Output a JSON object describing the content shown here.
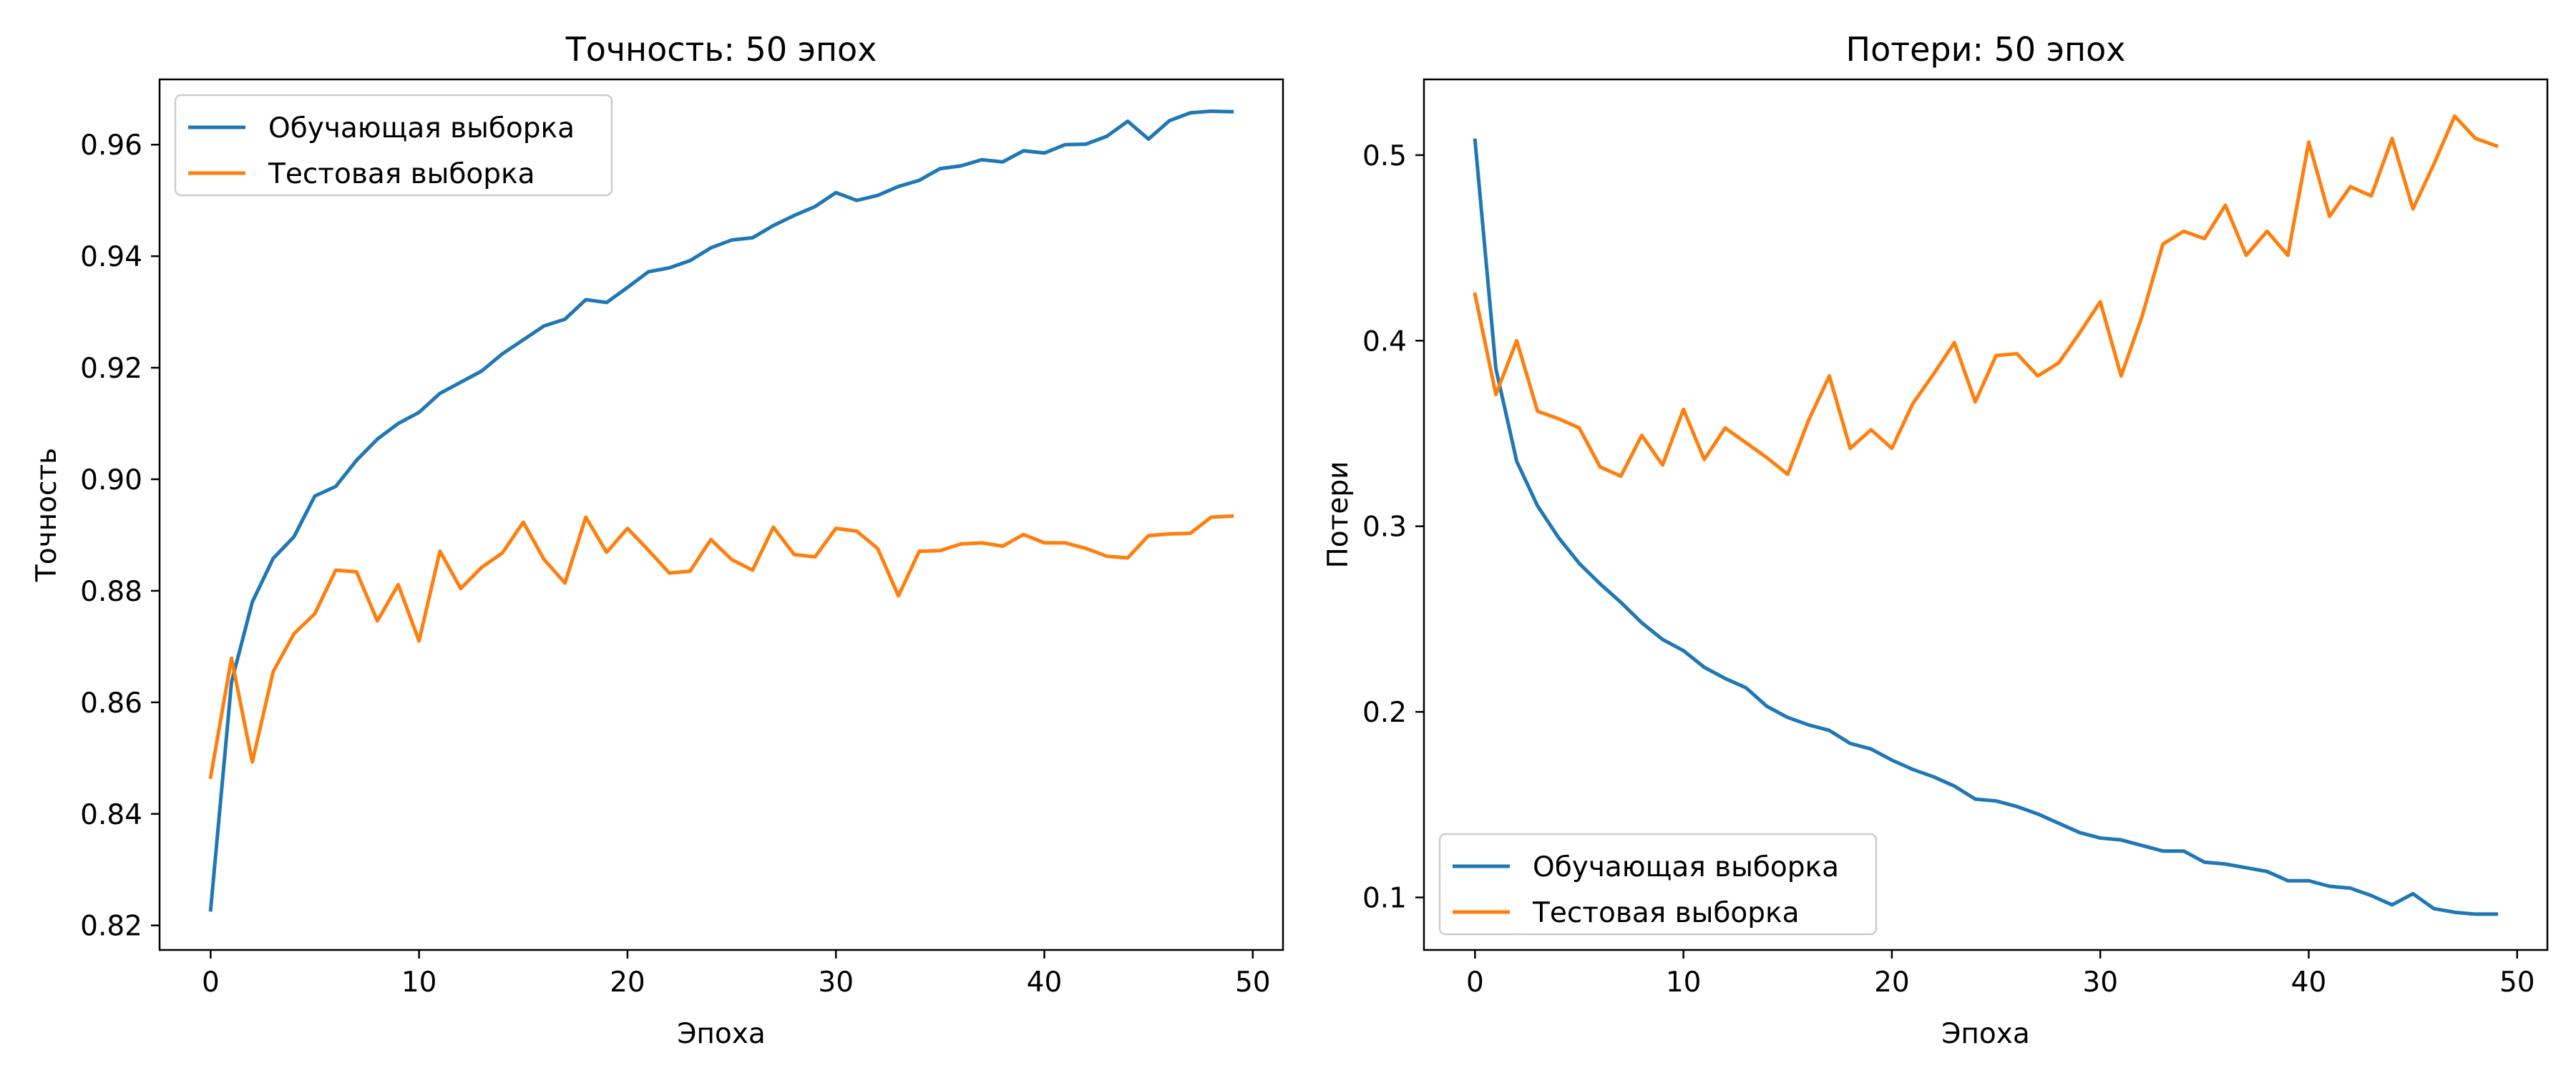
{
  "chart_data": [
    {
      "type": "line",
      "title": "Точность: 50 эпох",
      "xlabel": "Эпоха",
      "ylabel": "Точность",
      "xlim": [
        -2.45,
        51.45
      ],
      "ylim": [
        0.8156,
        0.9717
      ],
      "xticks": [
        0,
        10,
        20,
        30,
        40,
        50
      ],
      "xtick_labels": [
        "0",
        "10",
        "20",
        "30",
        "40",
        "50"
      ],
      "yticks": [
        0.82,
        0.84,
        0.86,
        0.88,
        0.9,
        0.92,
        0.94,
        0.96
      ],
      "ytick_labels": [
        "0.82",
        "0.84",
        "0.86",
        "0.88",
        "0.90",
        "0.92",
        "0.94",
        "0.96"
      ],
      "grid": false,
      "legend_position": "upper-left",
      "x": [
        0,
        1,
        2,
        3,
        4,
        5,
        6,
        7,
        8,
        9,
        10,
        11,
        12,
        13,
        14,
        15,
        16,
        17,
        18,
        19,
        20,
        21,
        22,
        23,
        24,
        25,
        26,
        27,
        28,
        29,
        30,
        31,
        32,
        33,
        34,
        35,
        36,
        37,
        38,
        39,
        40,
        41,
        42,
        43,
        44,
        45,
        46,
        47,
        48,
        49
      ],
      "series": [
        {
          "name": "Обучающая выборка",
          "color": "#1f77b4",
          "values": [
            0.8228,
            0.8636,
            0.878,
            0.8858,
            0.8897,
            0.897,
            0.8987,
            0.9034,
            0.9072,
            0.91,
            0.912,
            0.9154,
            0.9174,
            0.9194,
            0.9225,
            0.925,
            0.9275,
            0.9287,
            0.9322,
            0.9317,
            0.9344,
            0.9372,
            0.9379,
            0.9392,
            0.9415,
            0.9429,
            0.9433,
            0.9455,
            0.9473,
            0.9489,
            0.9514,
            0.95,
            0.9509,
            0.9525,
            0.9536,
            0.9557,
            0.9562,
            0.9573,
            0.9569,
            0.9589,
            0.9585,
            0.96,
            0.9601,
            0.9615,
            0.9642,
            0.961,
            0.9643,
            0.9657,
            0.966,
            0.9659
          ]
        },
        {
          "name": "Тестовая выборка",
          "color": "#ff7f0e",
          "values": [
            0.8466,
            0.8679,
            0.8493,
            0.8655,
            0.8723,
            0.8759,
            0.8837,
            0.8834,
            0.8746,
            0.8811,
            0.871,
            0.8871,
            0.8804,
            0.8842,
            0.8868,
            0.8923,
            0.8856,
            0.8814,
            0.8932,
            0.8869,
            0.8912,
            0.8873,
            0.8832,
            0.8835,
            0.8892,
            0.8856,
            0.8837,
            0.8914,
            0.8865,
            0.8861,
            0.8912,
            0.8907,
            0.8876,
            0.8791,
            0.8871,
            0.8872,
            0.8884,
            0.8886,
            0.888,
            0.8901,
            0.8886,
            0.8886,
            0.8876,
            0.8862,
            0.8859,
            0.8899,
            0.8902,
            0.8903,
            0.8932,
            0.8934
          ]
        }
      ]
    },
    {
      "type": "line",
      "title": "Потери: 50 эпох",
      "xlabel": "Эпоха",
      "ylabel": "Потери",
      "xlim": [
        -2.45,
        51.45
      ],
      "ylim": [
        0.0717,
        0.5408
      ],
      "xticks": [
        0,
        10,
        20,
        30,
        40,
        50
      ],
      "xtick_labels": [
        "0",
        "10",
        "20",
        "30",
        "40",
        "50"
      ],
      "yticks": [
        0.1,
        0.2,
        0.3,
        0.4,
        0.5
      ],
      "ytick_labels": [
        "0.1",
        "0.2",
        "0.3",
        "0.4",
        "0.5"
      ],
      "grid": false,
      "legend_position": "lower-left",
      "x": [
        0,
        1,
        2,
        3,
        4,
        5,
        6,
        7,
        8,
        9,
        10,
        11,
        12,
        13,
        14,
        15,
        16,
        17,
        18,
        19,
        20,
        21,
        22,
        23,
        24,
        25,
        26,
        27,
        28,
        29,
        30,
        31,
        32,
        33,
        34,
        35,
        36,
        37,
        38,
        39,
        40,
        41,
        42,
        43,
        44,
        45,
        46,
        47,
        48,
        49
      ],
      "series": [
        {
          "name": "Обучающая выборка",
          "color": "#1f77b4",
          "values": [
            0.508,
            0.385,
            0.335,
            0.311,
            0.294,
            0.28,
            0.269,
            0.259,
            0.248,
            0.239,
            0.233,
            0.224,
            0.218,
            0.213,
            0.203,
            0.197,
            0.193,
            0.19,
            0.183,
            0.18,
            0.174,
            0.169,
            0.165,
            0.16,
            0.153,
            0.152,
            0.149,
            0.145,
            0.14,
            0.135,
            0.132,
            0.131,
            0.128,
            0.125,
            0.125,
            0.119,
            0.118,
            0.116,
            0.114,
            0.109,
            0.109,
            0.106,
            0.105,
            0.101,
            0.096,
            0.102,
            0.094,
            0.092,
            0.091,
            0.091
          ]
        },
        {
          "name": "Тестовая выборка",
          "color": "#ff7f0e",
          "values": [
            0.425,
            0.371,
            0.4,
            0.362,
            0.358,
            0.353,
            0.332,
            0.327,
            0.349,
            0.333,
            0.363,
            0.336,
            0.353,
            0.345,
            0.337,
            0.328,
            0.357,
            0.381,
            0.342,
            0.352,
            0.342,
            0.366,
            0.382,
            0.399,
            0.367,
            0.392,
            0.393,
            0.381,
            0.388,
            0.404,
            0.421,
            0.381,
            0.413,
            0.452,
            0.459,
            0.455,
            0.473,
            0.446,
            0.459,
            0.446,
            0.507,
            0.467,
            0.483,
            0.478,
            0.509,
            0.471,
            0.495,
            0.521,
            0.509,
            0.505
          ]
        }
      ]
    }
  ]
}
